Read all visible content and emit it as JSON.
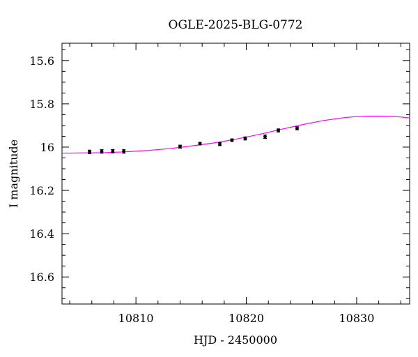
{
  "chart_data": {
    "type": "scatter",
    "title": "OGLE-2025-BLG-0772",
    "xlabel": "HJD - 2450000",
    "ylabel": "I magnitude",
    "xlim": [
      10803.3,
      10834.8
    ],
    "ylim": [
      16.725,
      15.52
    ],
    "y_inverted": true,
    "grid": false,
    "x_ticks": [
      "10810",
      "10820",
      "10830"
    ],
    "y_ticks": [
      "15.6",
      "15.8",
      "16",
      "16.2",
      "16.4",
      "16.6"
    ],
    "colors": {
      "data": "#000000",
      "model": "#ff00ff"
    },
    "series": [
      {
        "type": "scatter",
        "x": [
          10805.8,
          10806.9,
          10807.9,
          10808.9,
          10814.0,
          10815.8,
          10817.6,
          10818.7,
          10819.9,
          10821.7,
          10822.9,
          10824.6
        ],
        "y": [
          16.022,
          16.02,
          16.019,
          16.02,
          15.998,
          15.984,
          15.986,
          15.968,
          15.96,
          15.952,
          15.923,
          15.913
        ],
        "yerr": [
          0.008,
          0.008,
          0.008,
          0.008,
          0.007,
          0.006,
          0.007,
          0.006,
          0.007,
          0.008,
          0.007,
          0.007
        ]
      },
      {
        "type": "line",
        "x": [
          10803.3,
          10805,
          10807,
          10809,
          10811,
          10813,
          10815,
          10817,
          10819,
          10821,
          10823,
          10825,
          10827,
          10829,
          10830,
          10831,
          10832,
          10833,
          10834,
          10834.8
        ],
        "y": [
          16.028,
          16.027,
          16.026,
          16.022,
          16.016,
          16.007,
          15.995,
          15.981,
          15.964,
          15.943,
          15.92,
          15.897,
          15.877,
          15.863,
          15.859,
          15.857,
          15.857,
          15.858,
          15.861,
          15.865
        ]
      }
    ]
  }
}
